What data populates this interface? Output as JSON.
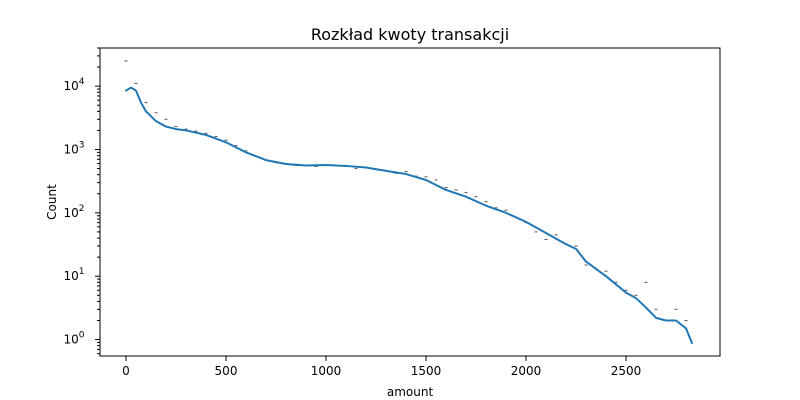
{
  "chart_data": {
    "type": "line",
    "title": "Rozkład kwoty transakcji",
    "xlabel": "amount",
    "ylabel": "Count",
    "xlim": [
      -130,
      2970
    ],
    "ylim": [
      0.55,
      40000
    ],
    "yscale": "log",
    "grid": false,
    "colors": {
      "line": "#1f77b4",
      "bins": "#555555"
    },
    "x_ticks": [
      0,
      500,
      1000,
      1500,
      2000,
      2500
    ],
    "x_tick_labels": [
      "0",
      "500",
      "1000",
      "1500",
      "2000",
      "2500"
    ],
    "y_ticks": [
      {
        "value": 1,
        "base": "10",
        "exp": "0"
      },
      {
        "value": 10,
        "base": "10",
        "exp": "1"
      },
      {
        "value": 100,
        "base": "10",
        "exp": "2"
      },
      {
        "value": 1000,
        "base": "10",
        "exp": "3"
      },
      {
        "value": 10000,
        "base": "10",
        "exp": "4"
      }
    ],
    "bins": {
      "width": 50,
      "x": [
        0,
        50,
        100,
        150,
        200,
        250,
        300,
        350,
        400,
        450,
        500,
        550,
        600,
        650,
        700,
        750,
        800,
        850,
        900,
        950,
        1000,
        1050,
        1100,
        1150,
        1200,
        1250,
        1300,
        1350,
        1400,
        1450,
        1500,
        1550,
        1600,
        1650,
        1700,
        1750,
        1800,
        1850,
        1900,
        1950,
        2000,
        2050,
        2100,
        2150,
        2200,
        2250,
        2300,
        2350,
        2400,
        2450,
        2500,
        2550,
        2600,
        2650,
        2700,
        2750,
        2800
      ],
      "counts": [
        25000,
        11000,
        5500,
        3800,
        3000,
        2300,
        2100,
        1950,
        1800,
        1600,
        1400,
        1150,
        950,
        780,
        680,
        620,
        580,
        560,
        550,
        540,
        560,
        560,
        560,
        500,
        520,
        490,
        460,
        420,
        450,
        380,
        370,
        330,
        250,
        230,
        210,
        180,
        150,
        120,
        110,
        85,
        70,
        50,
        38,
        45,
        32,
        30,
        15,
        13,
        12,
        8,
        6,
        5,
        8,
        3,
        2,
        3,
        2
      ]
    },
    "kde": {
      "x": [
        0,
        25,
        50,
        75,
        100,
        150,
        200,
        250,
        300,
        400,
        500,
        600,
        700,
        800,
        900,
        1000,
        1100,
        1200,
        1300,
        1400,
        1500,
        1600,
        1700,
        1800,
        1900,
        2000,
        2100,
        2200,
        2250,
        2300,
        2400,
        2500,
        2550,
        2600,
        2650,
        2700,
        2750,
        2800,
        2830
      ],
      "y": [
        8500,
        9500,
        8500,
        5500,
        4000,
        2800,
        2300,
        2100,
        2000,
        1700,
        1300,
        900,
        680,
        590,
        560,
        570,
        550,
        520,
        460,
        410,
        330,
        230,
        180,
        130,
        100,
        72,
        48,
        32,
        27,
        17,
        10,
        5.5,
        4.5,
        3.2,
        2.2,
        2.0,
        2.0,
        1.5,
        0.88
      ]
    }
  }
}
